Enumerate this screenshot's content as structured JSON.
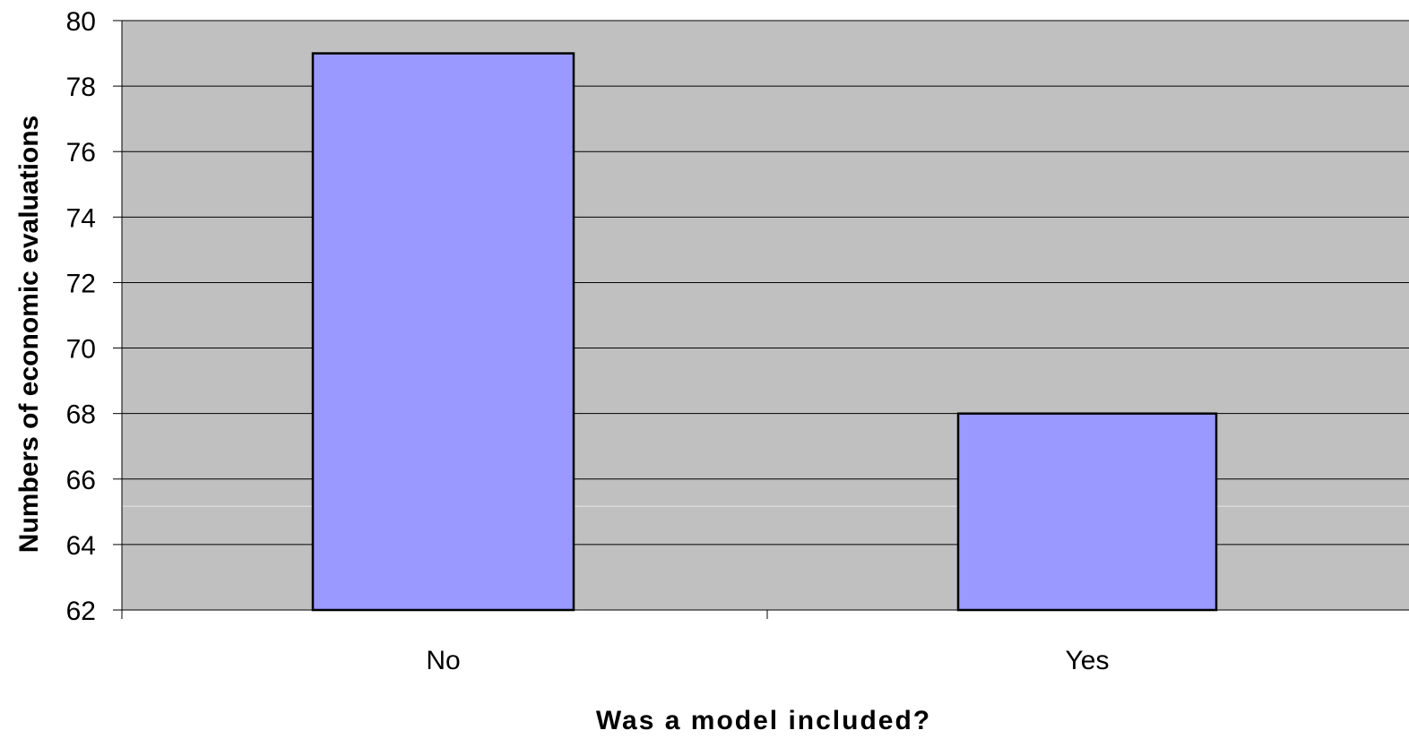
{
  "chart_data": {
    "type": "bar",
    "title": "",
    "categories": [
      "No",
      "Yes"
    ],
    "values": [
      79,
      68
    ],
    "xlabel": "Was a model included?",
    "ylabel": "Numbers of economic evaluations",
    "ylim": [
      62,
      80
    ],
    "yticks": [
      "62",
      "64",
      "66",
      "68",
      "70",
      "72",
      "74",
      "76",
      "78",
      "80"
    ],
    "grid": true,
    "legend": "none",
    "colors": {
      "plot_background": "#c0c0c0",
      "bar_fill": "#9999ff",
      "bar_stroke": "#000000",
      "gridline": "#000000"
    }
  }
}
